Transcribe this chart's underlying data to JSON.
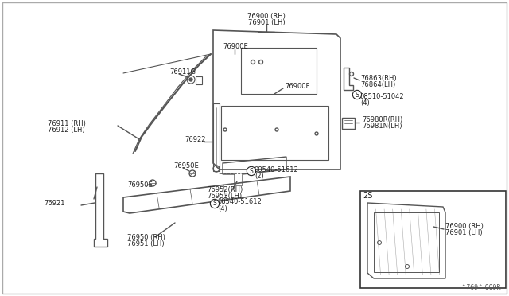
{
  "bg_color": "#ffffff",
  "lc": "#555555",
  "lc_dark": "#333333",
  "fs": 6.0,
  "watermark": "^769^ 009R",
  "labels": {
    "76900_rh_top": "76900 (RH)",
    "76901_lh_top": "76901 (LH)",
    "76900E": "76900E",
    "76900F": "76900F",
    "76863_rh": "76863(RH)",
    "76864_lh": "76864(LH)",
    "08510": "08510-51042",
    "08510_4": "(4)",
    "76980r": "76980R(RH)",
    "76981n": "76981N(LH)",
    "76911G": "76911G",
    "76911_rh": "76911 (RH)",
    "76912_lh": "76912 (LH)",
    "76922": "76922",
    "76950E_top": "76950E",
    "76950E_bot": "76950E",
    "08540_2": "08540-51612",
    "08540_2b": "(2)",
    "76952_rh": "76952(RH)",
    "76953_lh": "76953(LH)",
    "08540_4": "08540-51612",
    "08540_4b": "(4)",
    "76921": "76921",
    "76950_rh": "76950 (RH)",
    "76951_lh": "76951 (LH)",
    "2S": "2S",
    "76900_rh_ins": "76900 (RH)",
    "76901_lh_ins": "76901 (LH)"
  },
  "figsize": [
    6.4,
    3.72
  ],
  "dpi": 100
}
